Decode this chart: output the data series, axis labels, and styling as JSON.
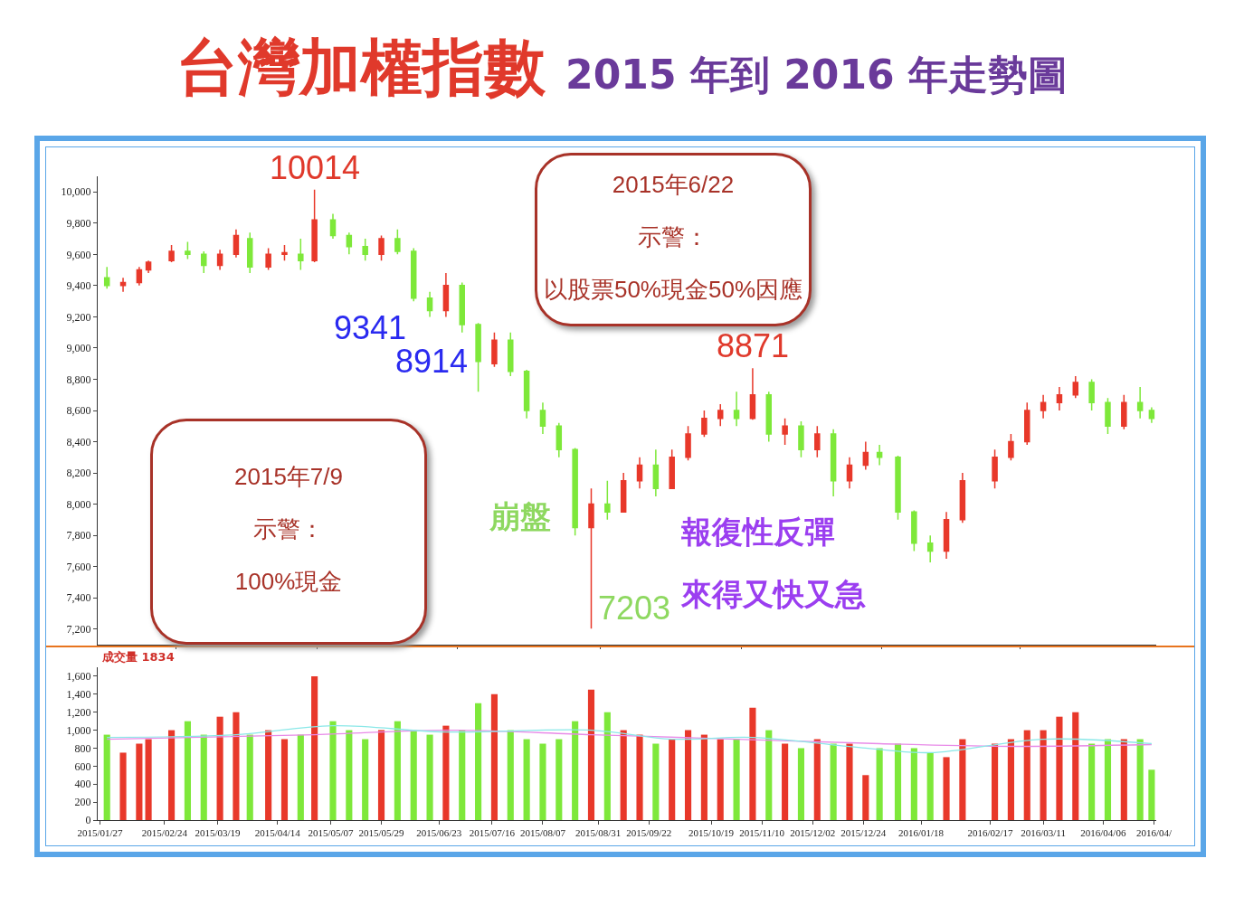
{
  "chart_data": [
    {
      "type": "candlestick",
      "title": "台灣加權指數",
      "subtitle": "2015 年到 2016 年走勢圖",
      "x": [
        "2015-01-30",
        "2015-02-06",
        "2015-02-13",
        "2015-02-17",
        "2015-02-27",
        "2015-03-06",
        "2015-03-13",
        "2015-03-20",
        "2015-03-27",
        "2015-04-02",
        "2015-04-10",
        "2015-04-17",
        "2015-04-24",
        "2015-04-30",
        "2015-05-08",
        "2015-05-15",
        "2015-05-22",
        "2015-05-29",
        "2015-06-05",
        "2015-06-12",
        "2015-06-19",
        "2015-06-26",
        "2015-07-03",
        "2015-07-10",
        "2015-07-17",
        "2015-07-24",
        "2015-07-31",
        "2015-08-07",
        "2015-08-14",
        "2015-08-21",
        "2015-08-28",
        "2015-09-04",
        "2015-09-11",
        "2015-09-18",
        "2015-09-25",
        "2015-10-02",
        "2015-10-09",
        "2015-10-16",
        "2015-10-23",
        "2015-10-30",
        "2015-11-06",
        "2015-11-13",
        "2015-11-20",
        "2015-11-27",
        "2015-12-04",
        "2015-12-11",
        "2015-12-18",
        "2015-12-25",
        "2015-12-31",
        "2016-01-08",
        "2016-01-15",
        "2016-01-22",
        "2016-01-29",
        "2016-02-05",
        "2016-02-19",
        "2016-02-26",
        "2016-03-04",
        "2016-03-11",
        "2016-03-18",
        "2016-03-25",
        "2016-04-01",
        "2016-04-08",
        "2016-04-15",
        "2016-04-22",
        "2016-04-27"
      ],
      "ohlc": [
        [
          9450,
          9520,
          9380,
          9400
        ],
        [
          9400,
          9450,
          9360,
          9420
        ],
        [
          9420,
          9520,
          9400,
          9500
        ],
        [
          9500,
          9560,
          9480,
          9550
        ],
        [
          9560,
          9660,
          9550,
          9620
        ],
        [
          9620,
          9680,
          9570,
          9600
        ],
        [
          9600,
          9620,
          9480,
          9530
        ],
        [
          9530,
          9630,
          9500,
          9600
        ],
        [
          9600,
          9760,
          9580,
          9720
        ],
        [
          9700,
          9740,
          9480,
          9520
        ],
        [
          9520,
          9640,
          9500,
          9600
        ],
        [
          9600,
          9660,
          9560,
          9610
        ],
        [
          9600,
          9700,
          9500,
          9560
        ],
        [
          9560,
          10014,
          9550,
          9820
        ],
        [
          9820,
          9860,
          9700,
          9720
        ],
        [
          9720,
          9740,
          9600,
          9650
        ],
        [
          9650,
          9700,
          9560,
          9600
        ],
        [
          9600,
          9720,
          9560,
          9700
        ],
        [
          9700,
          9760,
          9600,
          9620
        ],
        [
          9620,
          9640,
          9300,
          9320
        ],
        [
          9320,
          9360,
          9200,
          9240
        ],
        [
          9240,
          9480,
          9200,
          9400
        ],
        [
          9400,
          9420,
          9100,
          9150
        ],
        [
          9150,
          9160,
          8720,
          8914
        ],
        [
          8900,
          9100,
          8880,
          9050
        ],
        [
          9050,
          9100,
          8820,
          8850
        ],
        [
          8850,
          8860,
          8550,
          8600
        ],
        [
          8600,
          8650,
          8450,
          8500
        ],
        [
          8500,
          8520,
          8300,
          8350
        ],
        [
          8350,
          8360,
          7800,
          7850
        ],
        [
          7850,
          8100,
          7203,
          8000
        ],
        [
          8000,
          8150,
          7900,
          7950
        ],
        [
          7950,
          8200,
          7950,
          8150
        ],
        [
          8150,
          8300,
          8100,
          8250
        ],
        [
          8250,
          8350,
          8050,
          8100
        ],
        [
          8100,
          8350,
          8100,
          8300
        ],
        [
          8300,
          8500,
          8280,
          8450
        ],
        [
          8450,
          8600,
          8430,
          8550
        ],
        [
          8550,
          8640,
          8500,
          8600
        ],
        [
          8600,
          8720,
          8500,
          8550
        ],
        [
          8550,
          8871,
          8540,
          8700
        ],
        [
          8700,
          8720,
          8400,
          8450
        ],
        [
          8450,
          8550,
          8380,
          8500
        ],
        [
          8500,
          8530,
          8300,
          8350
        ],
        [
          8350,
          8500,
          8300,
          8450
        ],
        [
          8450,
          8480,
          8050,
          8150
        ],
        [
          8150,
          8300,
          8100,
          8250
        ],
        [
          8250,
          8400,
          8220,
          8330
        ],
        [
          8330,
          8380,
          8250,
          8300
        ],
        [
          8300,
          8310,
          7900,
          7950
        ],
        [
          7950,
          7960,
          7700,
          7750
        ],
        [
          7750,
          7800,
          7627,
          7700
        ],
        [
          7700,
          7950,
          7650,
          7900
        ],
        [
          7900,
          8200,
          7880,
          8150
        ],
        [
          8150,
          8350,
          8100,
          8300
        ],
        [
          8300,
          8450,
          8280,
          8400
        ],
        [
          8400,
          8650,
          8380,
          8600
        ],
        [
          8600,
          8700,
          8550,
          8650
        ],
        [
          8650,
          8750,
          8600,
          8700
        ],
        [
          8700,
          8820,
          8680,
          8780
        ],
        [
          8780,
          8800,
          8600,
          8650
        ],
        [
          8650,
          8680,
          8450,
          8500
        ],
        [
          8500,
          8700,
          8480,
          8650
        ],
        [
          8650,
          8750,
          8550,
          8600
        ],
        [
          8600,
          8620,
          8520,
          8550
        ]
      ],
      "colors": [
        "#7ee83a",
        "#e8382a",
        "#e8382a",
        "#e8382a",
        "#e8382a",
        "#7ee83a",
        "#7ee83a",
        "#e8382a",
        "#e8382a",
        "#7ee83a",
        "#e8382a",
        "#e8382a",
        "#7ee83a",
        "#e8382a",
        "#7ee83a",
        "#7ee83a",
        "#7ee83a",
        "#e8382a",
        "#7ee83a",
        "#7ee83a",
        "#7ee83a",
        "#e8382a",
        "#7ee83a",
        "#7ee83a",
        "#e8382a",
        "#7ee83a",
        "#7ee83a",
        "#7ee83a",
        "#7ee83a",
        "#7ee83a",
        "#e8382a",
        "#7ee83a",
        "#e8382a",
        "#e8382a",
        "#7ee83a",
        "#e8382a",
        "#e8382a",
        "#e8382a",
        "#e8382a",
        "#7ee83a",
        "#e8382a",
        "#7ee83a",
        "#e8382a",
        "#7ee83a",
        "#e8382a",
        "#7ee83a",
        "#e8382a",
        "#e8382a",
        "#7ee83a",
        "#7ee83a",
        "#7ee83a",
        "#7ee83a",
        "#e8382a",
        "#e8382a",
        "#e8382a",
        "#e8382a",
        "#e8382a",
        "#e8382a",
        "#e8382a",
        "#e8382a",
        "#7ee83a",
        "#7ee83a",
        "#e8382a",
        "#7ee83a",
        "#7ee83a"
      ],
      "xlim": [
        "2015-01-26",
        "2016-04-29"
      ],
      "ylim": [
        7100,
        10100
      ],
      "yticks": [
        {
          "value": 7200,
          "label": "7,200"
        },
        {
          "value": 7400,
          "label": "7,400"
        },
        {
          "value": 7600,
          "label": "7,600"
        },
        {
          "value": 7800,
          "label": "7,800"
        },
        {
          "value": 8000,
          "label": "8,000"
        },
        {
          "value": 8200,
          "label": "8,200"
        },
        {
          "value": 8400,
          "label": "8,400"
        },
        {
          "value": 8600,
          "label": "8,600"
        },
        {
          "value": 8800,
          "label": "8,800"
        },
        {
          "value": 9000,
          "label": "9,000"
        },
        {
          "value": 9200,
          "label": "9,200"
        },
        {
          "value": 9400,
          "label": "9,400"
        },
        {
          "value": 9600,
          "label": "9,600"
        },
        {
          "value": 9800,
          "label": "9,800"
        },
        {
          "value": 10000,
          "label": "10,000"
        }
      ],
      "tick_labels": "y",
      "annotations": [
        {
          "text": "10014",
          "x": "2015-04-30",
          "y": 10014
        },
        {
          "text": "8914",
          "x": "2015-07-10",
          "y": 8914
        },
        {
          "text": "7203",
          "x": "2015-08-28",
          "y": 7203
        },
        {
          "text": "8871",
          "x": "2015-11-06",
          "y": 8871
        },
        "9341",
        "2015年6/22",
        "示警：",
        "以股票50%現金50%因應",
        "2015年7/9",
        "示警：",
        "100%現金",
        "崩盤",
        "報復性反彈",
        "來得又快又急"
      ]
    },
    {
      "type": "bar",
      "annotations": [
        "成交量 1834"
      ],
      "x": [
        "2015-01-30",
        "2015-02-06",
        "2015-02-13",
        "2015-02-17",
        "2015-02-27",
        "2015-03-06",
        "2015-03-13",
        "2015-03-20",
        "2015-03-27",
        "2015-04-02",
        "2015-04-10",
        "2015-04-17",
        "2015-04-24",
        "2015-04-30",
        "2015-05-08",
        "2015-05-15",
        "2015-05-22",
        "2015-05-29",
        "2015-06-05",
        "2015-06-12",
        "2015-06-19",
        "2015-06-26",
        "2015-07-03",
        "2015-07-10",
        "2015-07-17",
        "2015-07-24",
        "2015-07-31",
        "2015-08-07",
        "2015-08-14",
        "2015-08-21",
        "2015-08-28",
        "2015-09-04",
        "2015-09-11",
        "2015-09-18",
        "2015-09-25",
        "2015-10-02",
        "2015-10-09",
        "2015-10-16",
        "2015-10-23",
        "2015-10-30",
        "2015-11-06",
        "2015-11-13",
        "2015-11-20",
        "2015-11-27",
        "2015-12-04",
        "2015-12-11",
        "2015-12-18",
        "2015-12-25",
        "2015-12-31",
        "2016-01-08",
        "2016-01-15",
        "2016-01-22",
        "2016-01-29",
        "2016-02-05",
        "2016-02-19",
        "2016-02-26",
        "2016-03-04",
        "2016-03-11",
        "2016-03-18",
        "2016-03-25",
        "2016-04-01",
        "2016-04-08",
        "2016-04-15",
        "2016-04-22",
        "2016-04-27"
      ],
      "series": [
        {
          "type": "bar",
          "values": [
            950,
            750,
            850,
            900,
            1000,
            1100,
            950,
            1150,
            1200,
            950,
            1000,
            900,
            950,
            1600,
            1100,
            1000,
            900,
            1000,
            1100,
            1000,
            950,
            1050,
            1000,
            1300,
            1400,
            1000,
            900,
            850,
            900,
            1100,
            1450,
            1200,
            1000,
            950,
            850,
            900,
            1000,
            950,
            900,
            900,
            1250,
            1000,
            850,
            800,
            900,
            850,
            850,
            500,
            800,
            850,
            800,
            750,
            700,
            900,
            850,
            900,
            1000,
            1000,
            1150,
            1200,
            850,
            900,
            900,
            900,
            560
          ],
          "colors": [
            "#7ee83a",
            "#e8382a",
            "#e8382a",
            "#e8382a",
            "#e8382a",
            "#7ee83a",
            "#7ee83a",
            "#e8382a",
            "#e8382a",
            "#7ee83a",
            "#e8382a",
            "#e8382a",
            "#7ee83a",
            "#e8382a",
            "#7ee83a",
            "#7ee83a",
            "#7ee83a",
            "#e8382a",
            "#7ee83a",
            "#7ee83a",
            "#7ee83a",
            "#e8382a",
            "#7ee83a",
            "#7ee83a",
            "#e8382a",
            "#7ee83a",
            "#7ee83a",
            "#7ee83a",
            "#7ee83a",
            "#7ee83a",
            "#e8382a",
            "#7ee83a",
            "#e8382a",
            "#e8382a",
            "#7ee83a",
            "#e8382a",
            "#e8382a",
            "#e8382a",
            "#e8382a",
            "#7ee83a",
            "#e8382a",
            "#7ee83a",
            "#e8382a",
            "#7ee83a",
            "#e8382a",
            "#7ee83a",
            "#e8382a",
            "#e8382a",
            "#7ee83a",
            "#7ee83a",
            "#7ee83a",
            "#7ee83a",
            "#e8382a",
            "#e8382a",
            "#e8382a",
            "#e8382a",
            "#e8382a",
            "#e8382a",
            "#e8382a",
            "#e8382a",
            "#7ee83a",
            "#7ee83a",
            "#e8382a",
            "#7ee83a",
            "#7ee83a"
          ]
        },
        {
          "type": "line",
          "color": "#e88ae8",
          "x": [
            "2015-01-30",
            "2015-04-30",
            "2015-06-26",
            "2015-08-28",
            "2015-10-30",
            "2015-12-31",
            "2016-02-26",
            "2016-04-27"
          ],
          "values": [
            900,
            950,
            1000,
            950,
            900,
            850,
            820,
            840
          ]
        },
        {
          "type": "line",
          "color": "#8ae8e8",
          "x": [
            "2015-01-30",
            "2015-03-27",
            "2015-05-08",
            "2015-06-26",
            "2015-08-28",
            "2015-10-02",
            "2015-11-06",
            "2015-12-25",
            "2016-01-22",
            "2016-03-11",
            "2016-04-27"
          ],
          "values": [
            920,
            950,
            1050,
            980,
            1000,
            900,
            920,
            800,
            750,
            900,
            850
          ]
        }
      ],
      "xlim": [
        "2015-01-26",
        "2016-04-29"
      ],
      "xticks": [
        {
          "value": "2015-01-27",
          "label": "2015/01/27"
        },
        {
          "value": "2015-02-24",
          "label": "2015/02/24"
        },
        {
          "value": "2015-03-19",
          "label": "2015/03/19"
        },
        {
          "value": "2015-04-14",
          "label": "2015/04/14"
        },
        {
          "value": "2015-05-07",
          "label": "2015/05/07"
        },
        {
          "value": "2015-05-29",
          "label": "2015/05/29"
        },
        {
          "value": "2015-06-23",
          "label": "2015/06/23"
        },
        {
          "value": "2015-07-16",
          "label": "2015/07/16"
        },
        {
          "value": "2015-08-07",
          "label": "2015/08/07"
        },
        {
          "value": "2015-08-31",
          "label": "2015/08/31"
        },
        {
          "value": "2015-09-22",
          "label": "2015/09/22"
        },
        {
          "value": "2015-10-19",
          "label": "2015/10/19"
        },
        {
          "value": "2015-11-10",
          "label": "2015/11/10"
        },
        {
          "value": "2015-12-02",
          "label": "2015/12/02"
        },
        {
          "value": "2015-12-24",
          "label": "2015/12/24"
        },
        {
          "value": "2016-01-18",
          "label": "2016/01/18"
        },
        {
          "value": "2016-02-17",
          "label": "2016/02/17"
        },
        {
          "value": "2016-03-11",
          "label": "2016/03/11"
        },
        {
          "value": "2016-04-06",
          "label": "2016/04/06"
        },
        {
          "value": "2016-04-28",
          "label": "2016/04/"
        }
      ],
      "ylim": [
        0,
        1700
      ],
      "yticks": [
        0,
        200,
        400,
        600,
        800,
        {
          "value": 1000,
          "label": "1,000"
        },
        {
          "value": 1200,
          "label": "1,200"
        },
        {
          "value": 1400,
          "label": "1,400"
        },
        {
          "value": 1600,
          "label": "1,600"
        }
      ]
    }
  ]
}
